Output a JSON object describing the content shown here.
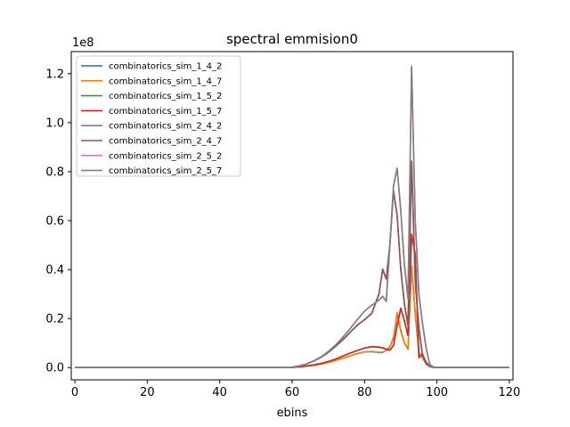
{
  "chart_data": {
    "type": "line",
    "title": "spectral emmision0",
    "xlabel": "ebins",
    "ylabel": "",
    "y_offset_label": "1e8",
    "y_scale": 100000000,
    "xlim": [
      -1,
      121
    ],
    "ylim": [
      -5000000,
      129000000
    ],
    "xticks": [
      0,
      20,
      40,
      60,
      80,
      100,
      120
    ],
    "yticks": [
      0,
      20000000,
      40000000,
      60000000,
      80000000,
      100000000,
      120000000
    ],
    "ytick_labels": [
      "0.0",
      "0.2",
      "0.4",
      "0.6",
      "0.8",
      "1.0",
      "1.2"
    ],
    "grid": false,
    "legend_position": "upper-left",
    "x": [
      0,
      10,
      20,
      30,
      40,
      50,
      58,
      60,
      62,
      64,
      66,
      68,
      70,
      72,
      74,
      76,
      78,
      80,
      82,
      84,
      85,
      86,
      87,
      88,
      89,
      90,
      91,
      92,
      93,
      94,
      95,
      96,
      97,
      98,
      99,
      100,
      105,
      110,
      120
    ],
    "series": [
      {
        "name": "combinatorics_sim_1_4_2",
        "color": "#1f77b4",
        "values": [
          0,
          0,
          0,
          0,
          0,
          0,
          0,
          100000,
          300000,
          600000,
          900000,
          1400000,
          2100000,
          2900000,
          3800000,
          4800000,
          5700000,
          6400000,
          6500000,
          6200000,
          6200000,
          7000000,
          8500000,
          12000000,
          22000000,
          15000000,
          10000000,
          7500000,
          41000000,
          22000000,
          6000000,
          4000000,
          1500000,
          500000,
          200000,
          0,
          0,
          0,
          0
        ]
      },
      {
        "name": "combinatorics_sim_1_4_7",
        "color": "#ff7f0e",
        "values": [
          0,
          0,
          0,
          0,
          0,
          0,
          0,
          100000,
          300000,
          600000,
          900000,
          1400000,
          2100000,
          2900000,
          3800000,
          4800000,
          5700000,
          6400000,
          6600000,
          6300000,
          6300000,
          7100000,
          8700000,
          12500000,
          22500000,
          15500000,
          10200000,
          7700000,
          41500000,
          22500000,
          6200000,
          4100000,
          1600000,
          500000,
          200000,
          0,
          0,
          0,
          0
        ]
      },
      {
        "name": "combinatorics_sim_1_5_2",
        "color": "#2ca02c",
        "values": [
          0,
          0,
          0,
          0,
          0,
          0,
          0,
          100000,
          300000,
          700000,
          1100000,
          1700000,
          2500000,
          3500000,
          4700000,
          5900000,
          7000000,
          8000000,
          8500000,
          8300000,
          8000000,
          7500000,
          7000000,
          9000000,
          17000000,
          24000000,
          19000000,
          13000000,
          54000000,
          46000000,
          4000000,
          5500000,
          2000000,
          600000,
          200000,
          0,
          0,
          0,
          0
        ]
      },
      {
        "name": "combinatorics_sim_1_5_7",
        "color": "#d62728",
        "values": [
          0,
          0,
          0,
          0,
          0,
          0,
          0,
          100000,
          300000,
          700000,
          1100000,
          1700000,
          2500000,
          3500000,
          4700000,
          5900000,
          7000000,
          8000000,
          8600000,
          8400000,
          8100000,
          7600000,
          7100000,
          9200000,
          17300000,
          24300000,
          19200000,
          13300000,
          54500000,
          46500000,
          4100000,
          5600000,
          2100000,
          600000,
          200000,
          0,
          0,
          0,
          0
        ]
      },
      {
        "name": "combinatorics_sim_2_4_2",
        "color": "#9467bd",
        "values": [
          0,
          0,
          0,
          0,
          0,
          0,
          0,
          200000,
          700000,
          1500000,
          2700000,
          4200000,
          6200000,
          8600000,
          11300000,
          14300000,
          17300000,
          19500000,
          22000000,
          30000000,
          40000000,
          36000000,
          50000000,
          72000000,
          62000000,
          40000000,
          26000000,
          17000000,
          84000000,
          35000000,
          16000000,
          5000000,
          1500000,
          400000,
          100000,
          0,
          0,
          0,
          0
        ]
      },
      {
        "name": "combinatorics_sim_2_4_7",
        "color": "#8c564b",
        "values": [
          0,
          0,
          0,
          0,
          0,
          0,
          0,
          200000,
          700000,
          1500000,
          2700000,
          4200000,
          6200000,
          8700000,
          11400000,
          14400000,
          17400000,
          19600000,
          22200000,
          30300000,
          40300000,
          36300000,
          50300000,
          72300000,
          62300000,
          40300000,
          26300000,
          17300000,
          84300000,
          35300000,
          16300000,
          5200000,
          1600000,
          400000,
          100000,
          0,
          0,
          0,
          0
        ]
      },
      {
        "name": "combinatorics_sim_2_5_2",
        "color": "#e377c2",
        "values": [
          0,
          0,
          0,
          0,
          0,
          0,
          0,
          200000,
          700000,
          1500000,
          2800000,
          4400000,
          6600000,
          9200000,
          12400000,
          15900000,
          19600000,
          23000000,
          25500000,
          27500000,
          29000000,
          27000000,
          50000000,
          74000000,
          81500000,
          64000000,
          42000000,
          28000000,
          123000000,
          60000000,
          30000000,
          18000000,
          8000000,
          1200000,
          200000,
          0,
          0,
          0,
          0
        ]
      },
      {
        "name": "combinatorics_sim_2_5_7",
        "color": "#7f7f7f",
        "values": [
          0,
          0,
          0,
          0,
          0,
          0,
          0,
          200000,
          700000,
          1500000,
          2800000,
          4400000,
          6600000,
          9200000,
          12400000,
          15900000,
          19600000,
          23000000,
          25500000,
          27600000,
          29100000,
          27100000,
          50300000,
          74300000,
          81300000,
          64300000,
          42300000,
          28300000,
          123000000,
          60300000,
          30300000,
          18300000,
          8300000,
          1300000,
          300000,
          0,
          0,
          0,
          0
        ]
      }
    ]
  }
}
